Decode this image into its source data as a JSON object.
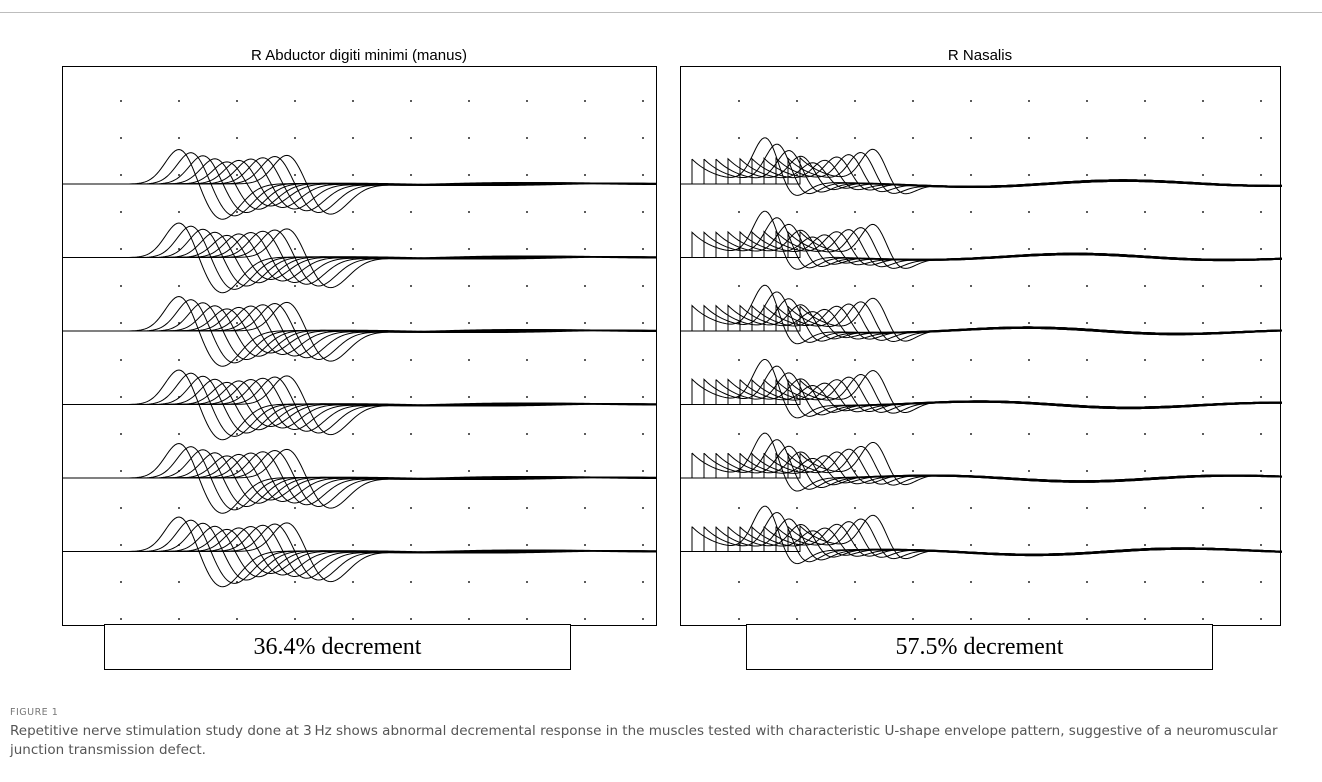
{
  "figure": {
    "label": "FIGURE 1",
    "caption": "Repetitive nerve stimulation study done at 3 Hz shows abnormal decremental response in the muscles tested with characteristic U-shape envelope pattern, suggestive of a neuromuscular junction transmission defect."
  },
  "panels": [
    {
      "title": "R Abductor digiti minimi (manus)",
      "result": "36.4% decrement"
    },
    {
      "title": "R Nasalis",
      "result": "57.5% decrement"
    }
  ],
  "chart_data": [
    {
      "type": "line",
      "title": "R Abductor digiti minimi (manus)",
      "stimulation_rate_hz": 3,
      "trains": 6,
      "responses_per_train": 10,
      "response_shape": "biphasic CMAP, negative peak followed by positive phase",
      "envelope": "U-shape",
      "decrement_percent": 36.4,
      "grid": true
    },
    {
      "type": "line",
      "title": "R Nasalis",
      "stimulation_rate_hz": 3,
      "trains": 6,
      "responses_per_train": 10,
      "response_shape": "CMAP with stimulus artifact steps and late baseline undulation",
      "envelope": "U-shape",
      "decrement_percent": 57.5,
      "grid": true
    }
  ]
}
